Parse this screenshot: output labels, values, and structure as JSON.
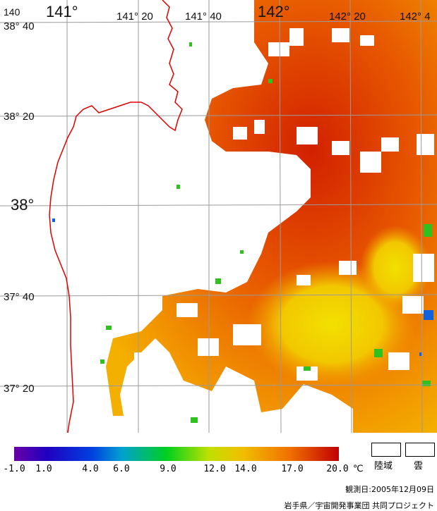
{
  "map": {
    "lon_labels": [
      {
        "text": "140",
        "big": false
      },
      {
        "text": "141°",
        "big": true
      },
      {
        "text": "141° 20",
        "big": false
      },
      {
        "text": "141° 40",
        "big": false
      },
      {
        "text": "142°",
        "big": true
      },
      {
        "text": "142° 20",
        "big": false
      },
      {
        "text": "142° 4",
        "big": false
      }
    ],
    "lat_labels": [
      {
        "text": "38° 40",
        "big": false
      },
      {
        "text": "38° 20",
        "big": false
      },
      {
        "text": "38°",
        "big": true
      },
      {
        "text": "37° 40",
        "big": false
      },
      {
        "text": "37° 20",
        "big": false
      }
    ],
    "colors": {
      "land": "#ffffff",
      "coast": "#e00000",
      "grid": "#9a9a9a",
      "sea_cool": "#f2c000",
      "sea_warm": "#e84a00",
      "sea_hot": "#d02000"
    }
  },
  "legend": {
    "ticks": [
      "-1.0",
      "1.0",
      "4.0",
      "6.0",
      "9.0",
      "12.0",
      "14.0",
      "17.0",
      "20.0"
    ],
    "unit": "℃",
    "land_label": "陸域",
    "cloud_label": "雲"
  },
  "footer": {
    "date": "観測日:2005年12月09日",
    "credit": "岩手県／宇宙開発事業団 共同プロジェクト"
  }
}
